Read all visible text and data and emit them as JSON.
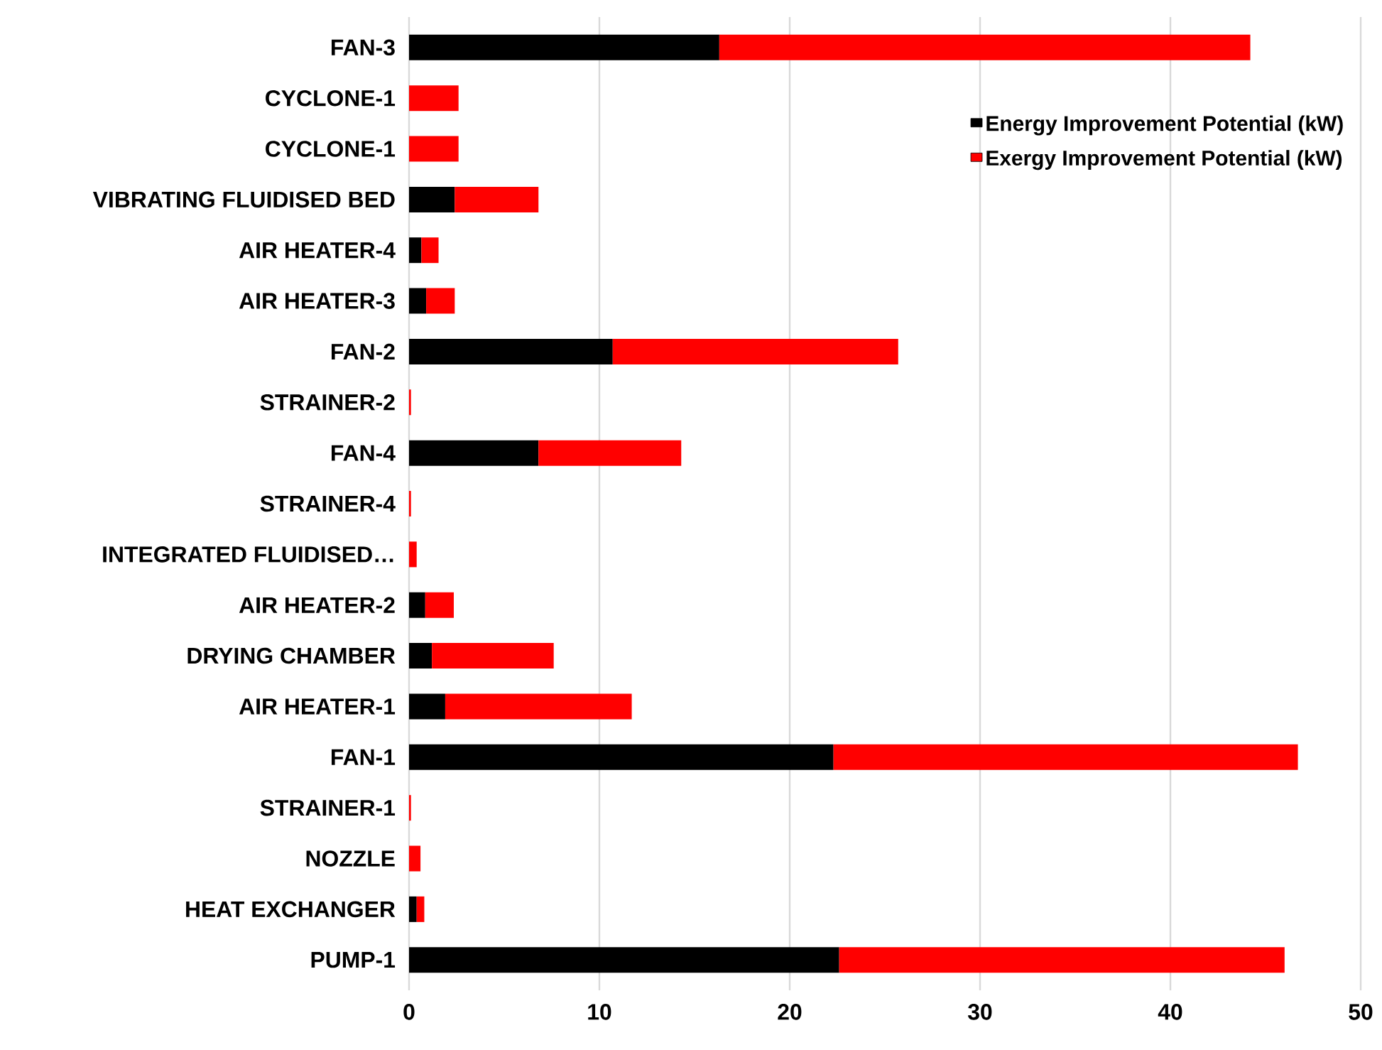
{
  "chart_data": {
    "type": "bar",
    "orientation": "horizontal",
    "stacked": true,
    "categories": [
      "FAN-3",
      "CYCLONE-1",
      "CYCLONE-1",
      "VIBRATING FLUIDISED BED",
      "AIR HEATER-4",
      "AIR HEATER-3",
      "FAN-2",
      "STRAINER-2",
      "FAN-4",
      "STRAINER-4",
      "INTEGRATED FLUIDISED…",
      "AIR HEATER-2",
      "DRYING CHAMBER",
      "AIR HEATER-1",
      "FAN-1",
      "STRAINER-1",
      "NOZZLE",
      "HEAT EXCHANGER",
      "PUMP-1"
    ],
    "series": [
      {
        "name": "Energy Improvement Potential (kW)",
        "color": "#000000",
        "values": [
          16.3,
          0,
          0,
          2.4,
          0.65,
          0.9,
          10.7,
          0,
          6.8,
          0,
          0,
          0.85,
          1.2,
          1.9,
          22.3,
          0,
          0,
          0.4,
          22.6
        ]
      },
      {
        "name": "Exergy Improvement Potential (kW)",
        "color": "#ff0000",
        "values": [
          27.9,
          2.6,
          2.6,
          4.4,
          0.9,
          1.5,
          15.0,
          0.1,
          7.5,
          0.1,
          0.4,
          1.5,
          6.4,
          9.8,
          24.4,
          0.1,
          0.6,
          0.4,
          23.4
        ]
      }
    ],
    "xlim": [
      0,
      50
    ],
    "xticks": [
      0,
      10,
      20,
      30,
      40,
      50
    ],
    "grid": "x",
    "legend": "top right"
  }
}
